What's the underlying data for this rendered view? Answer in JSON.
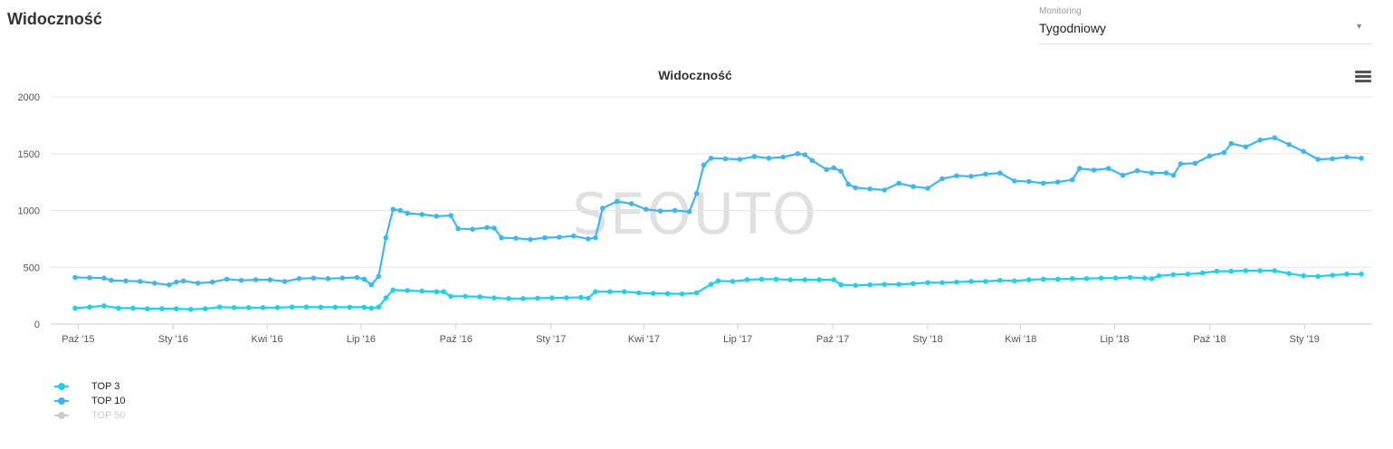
{
  "page": {
    "title": "Widoczność"
  },
  "monitoring": {
    "label": "Monitoring",
    "value": "Tygodniowy"
  },
  "colors": {
    "top3": "#19d3ed",
    "top10": "#3ab8f4",
    "top50": "#cccccc",
    "grid": "#e6e6e6",
    "axis_text": "#555555"
  },
  "icons": {
    "chart_menu": "hamburger-menu-icon",
    "dropdown": "caret-down-icon"
  },
  "watermark": "SEOUTO",
  "chart_data": {
    "type": "line",
    "title": "Widoczność",
    "xlabel": "",
    "ylabel": "",
    "ylim": [
      0,
      2000
    ],
    "y_ticks": [
      0,
      500,
      1000,
      1500,
      2000
    ],
    "x_axis": {
      "start": "2015-09-28",
      "end": "2019-02-25",
      "ticks": [
        {
          "label": "Paź '15",
          "date": "2015-10-01"
        },
        {
          "label": "Sty '16",
          "date": "2016-01-01"
        },
        {
          "label": "Kwi '16",
          "date": "2016-04-01"
        },
        {
          "label": "Lip '16",
          "date": "2016-07-01"
        },
        {
          "label": "Paź '16",
          "date": "2016-10-01"
        },
        {
          "label": "Sty '17",
          "date": "2017-01-01"
        },
        {
          "label": "Kwi '17",
          "date": "2017-04-01"
        },
        {
          "label": "Lip '17",
          "date": "2017-07-01"
        },
        {
          "label": "Paź '17",
          "date": "2017-10-01"
        },
        {
          "label": "Sty '18",
          "date": "2018-01-01"
        },
        {
          "label": "Kwi '18",
          "date": "2018-04-01"
        },
        {
          "label": "Lip '18",
          "date": "2018-07-01"
        },
        {
          "label": "Paź '18",
          "date": "2018-10-01"
        },
        {
          "label": "Sty '19",
          "date": "2019-01-01"
        }
      ]
    },
    "grid": true,
    "legend_position": "bottom-left",
    "series": [
      {
        "name": "TOP 3",
        "visible": true,
        "points": [
          [
            "2015-09-28",
            140
          ],
          [
            "2015-10-12",
            150
          ],
          [
            "2015-10-26",
            160
          ],
          [
            "2015-11-09",
            140
          ],
          [
            "2015-11-23",
            140
          ],
          [
            "2015-12-07",
            135
          ],
          [
            "2015-12-21",
            135
          ],
          [
            "2016-01-04",
            135
          ],
          [
            "2016-01-18",
            130
          ],
          [
            "2016-02-01",
            135
          ],
          [
            "2016-02-15",
            150
          ],
          [
            "2016-02-29",
            145
          ],
          [
            "2016-03-14",
            145
          ],
          [
            "2016-03-28",
            145
          ],
          [
            "2016-04-11",
            145
          ],
          [
            "2016-04-25",
            150
          ],
          [
            "2016-05-09",
            150
          ],
          [
            "2016-05-23",
            148
          ],
          [
            "2016-06-06",
            148
          ],
          [
            "2016-06-20",
            148
          ],
          [
            "2016-07-04",
            148
          ],
          [
            "2016-07-11",
            140
          ],
          [
            "2016-07-18",
            150
          ],
          [
            "2016-07-25",
            230
          ],
          [
            "2016-08-01",
            300
          ],
          [
            "2016-08-15",
            295
          ],
          [
            "2016-08-29",
            290
          ],
          [
            "2016-09-12",
            285
          ],
          [
            "2016-09-19",
            285
          ],
          [
            "2016-09-26",
            245
          ],
          [
            "2016-10-10",
            245
          ],
          [
            "2016-10-24",
            240
          ],
          [
            "2016-11-07",
            230
          ],
          [
            "2016-11-21",
            225
          ],
          [
            "2016-12-05",
            225
          ],
          [
            "2016-12-19",
            228
          ],
          [
            "2017-01-02",
            230
          ],
          [
            "2017-01-16",
            232
          ],
          [
            "2017-01-30",
            235
          ],
          [
            "2017-02-06",
            228
          ],
          [
            "2017-02-13",
            285
          ],
          [
            "2017-02-27",
            285
          ],
          [
            "2017-03-13",
            285
          ],
          [
            "2017-03-27",
            275
          ],
          [
            "2017-04-10",
            270
          ],
          [
            "2017-04-24",
            268
          ],
          [
            "2017-05-08",
            265
          ],
          [
            "2017-05-22",
            275
          ],
          [
            "2017-06-05",
            350
          ],
          [
            "2017-06-12",
            380
          ],
          [
            "2017-06-26",
            375
          ],
          [
            "2017-07-10",
            390
          ],
          [
            "2017-07-24",
            395
          ],
          [
            "2017-08-07",
            395
          ],
          [
            "2017-08-21",
            390
          ],
          [
            "2017-09-04",
            390
          ],
          [
            "2017-09-18",
            390
          ],
          [
            "2017-10-02",
            390
          ],
          [
            "2017-10-09",
            345
          ],
          [
            "2017-10-23",
            340
          ],
          [
            "2017-11-06",
            345
          ],
          [
            "2017-11-20",
            350
          ],
          [
            "2017-12-04",
            350
          ],
          [
            "2017-12-18",
            355
          ],
          [
            "2018-01-01",
            365
          ],
          [
            "2018-01-15",
            365
          ],
          [
            "2018-01-29",
            370
          ],
          [
            "2018-02-12",
            375
          ],
          [
            "2018-02-26",
            375
          ],
          [
            "2018-03-12",
            385
          ],
          [
            "2018-03-26",
            380
          ],
          [
            "2018-04-09",
            390
          ],
          [
            "2018-04-23",
            395
          ],
          [
            "2018-05-07",
            395
          ],
          [
            "2018-05-21",
            400
          ],
          [
            "2018-06-04",
            400
          ],
          [
            "2018-06-18",
            405
          ],
          [
            "2018-07-02",
            405
          ],
          [
            "2018-07-16",
            410
          ],
          [
            "2018-07-30",
            405
          ],
          [
            "2018-08-06",
            400
          ],
          [
            "2018-08-13",
            425
          ],
          [
            "2018-08-27",
            435
          ],
          [
            "2018-09-10",
            440
          ],
          [
            "2018-09-24",
            450
          ],
          [
            "2018-10-08",
            465
          ],
          [
            "2018-10-22",
            465
          ],
          [
            "2018-11-05",
            470
          ],
          [
            "2018-11-19",
            470
          ],
          [
            "2018-12-03",
            470
          ],
          [
            "2018-12-17",
            445
          ],
          [
            "2018-12-31",
            425
          ],
          [
            "2019-01-14",
            420
          ],
          [
            "2019-01-28",
            430
          ],
          [
            "2019-02-11",
            440
          ],
          [
            "2019-02-25",
            440
          ]
        ]
      },
      {
        "name": "TOP 10",
        "visible": true,
        "points": [
          [
            "2015-09-28",
            410
          ],
          [
            "2015-10-12",
            408
          ],
          [
            "2015-10-26",
            405
          ],
          [
            "2015-11-02",
            385
          ],
          [
            "2015-11-16",
            380
          ],
          [
            "2015-11-30",
            375
          ],
          [
            "2015-12-14",
            360
          ],
          [
            "2015-12-28",
            345
          ],
          [
            "2016-01-04",
            370
          ],
          [
            "2016-01-11",
            380
          ],
          [
            "2016-01-25",
            360
          ],
          [
            "2016-02-08",
            370
          ],
          [
            "2016-02-22",
            395
          ],
          [
            "2016-03-07",
            385
          ],
          [
            "2016-03-21",
            390
          ],
          [
            "2016-04-04",
            390
          ],
          [
            "2016-04-18",
            375
          ],
          [
            "2016-05-02",
            400
          ],
          [
            "2016-05-16",
            405
          ],
          [
            "2016-05-30",
            400
          ],
          [
            "2016-06-13",
            405
          ],
          [
            "2016-06-27",
            410
          ],
          [
            "2016-07-04",
            395
          ],
          [
            "2016-07-11",
            345
          ],
          [
            "2016-07-18",
            420
          ],
          [
            "2016-07-25",
            760
          ],
          [
            "2016-08-01",
            1010
          ],
          [
            "2016-08-08",
            1000
          ],
          [
            "2016-08-15",
            975
          ],
          [
            "2016-08-29",
            965
          ],
          [
            "2016-09-12",
            950
          ],
          [
            "2016-09-26",
            955
          ],
          [
            "2016-10-03",
            840
          ],
          [
            "2016-10-17",
            835
          ],
          [
            "2016-10-31",
            850
          ],
          [
            "2016-11-07",
            845
          ],
          [
            "2016-11-14",
            760
          ],
          [
            "2016-11-28",
            755
          ],
          [
            "2016-12-12",
            745
          ],
          [
            "2016-12-26",
            760
          ],
          [
            "2017-01-09",
            765
          ],
          [
            "2017-01-23",
            775
          ],
          [
            "2017-02-06",
            750
          ],
          [
            "2017-02-13",
            760
          ],
          [
            "2017-02-20",
            1020
          ],
          [
            "2017-03-06",
            1080
          ],
          [
            "2017-03-20",
            1060
          ],
          [
            "2017-04-03",
            1010
          ],
          [
            "2017-04-17",
            995
          ],
          [
            "2017-05-01",
            1000
          ],
          [
            "2017-05-15",
            990
          ],
          [
            "2017-05-22",
            1150
          ],
          [
            "2017-05-29",
            1400
          ],
          [
            "2017-06-05",
            1460
          ],
          [
            "2017-06-19",
            1455
          ],
          [
            "2017-07-03",
            1450
          ],
          [
            "2017-07-17",
            1475
          ],
          [
            "2017-07-31",
            1460
          ],
          [
            "2017-08-14",
            1470
          ],
          [
            "2017-08-28",
            1500
          ],
          [
            "2017-09-04",
            1490
          ],
          [
            "2017-09-11",
            1440
          ],
          [
            "2017-09-25",
            1360
          ],
          [
            "2017-10-02",
            1375
          ],
          [
            "2017-10-09",
            1345
          ],
          [
            "2017-10-16",
            1230
          ],
          [
            "2017-10-23",
            1200
          ],
          [
            "2017-11-06",
            1190
          ],
          [
            "2017-11-20",
            1180
          ],
          [
            "2017-12-04",
            1240
          ],
          [
            "2017-12-18",
            1210
          ],
          [
            "2018-01-01",
            1195
          ],
          [
            "2018-01-15",
            1280
          ],
          [
            "2018-01-29",
            1305
          ],
          [
            "2018-02-12",
            1300
          ],
          [
            "2018-02-26",
            1320
          ],
          [
            "2018-03-12",
            1330
          ],
          [
            "2018-03-26",
            1260
          ],
          [
            "2018-04-09",
            1255
          ],
          [
            "2018-04-23",
            1240
          ],
          [
            "2018-05-07",
            1250
          ],
          [
            "2018-05-21",
            1270
          ],
          [
            "2018-05-28",
            1370
          ],
          [
            "2018-06-11",
            1355
          ],
          [
            "2018-06-25",
            1370
          ],
          [
            "2018-07-09",
            1310
          ],
          [
            "2018-07-23",
            1350
          ],
          [
            "2018-08-06",
            1330
          ],
          [
            "2018-08-20",
            1330
          ],
          [
            "2018-08-27",
            1310
          ],
          [
            "2018-09-03",
            1410
          ],
          [
            "2018-09-17",
            1415
          ],
          [
            "2018-10-01",
            1480
          ],
          [
            "2018-10-15",
            1510
          ],
          [
            "2018-10-22",
            1590
          ],
          [
            "2018-11-05",
            1560
          ],
          [
            "2018-11-19",
            1620
          ],
          [
            "2018-12-03",
            1640
          ],
          [
            "2018-12-17",
            1580
          ],
          [
            "2018-12-31",
            1520
          ],
          [
            "2019-01-14",
            1450
          ],
          [
            "2019-01-28",
            1455
          ],
          [
            "2019-02-11",
            1470
          ],
          [
            "2019-02-25",
            1460
          ]
        ]
      },
      {
        "name": "TOP 50",
        "visible": false,
        "points": []
      }
    ]
  }
}
